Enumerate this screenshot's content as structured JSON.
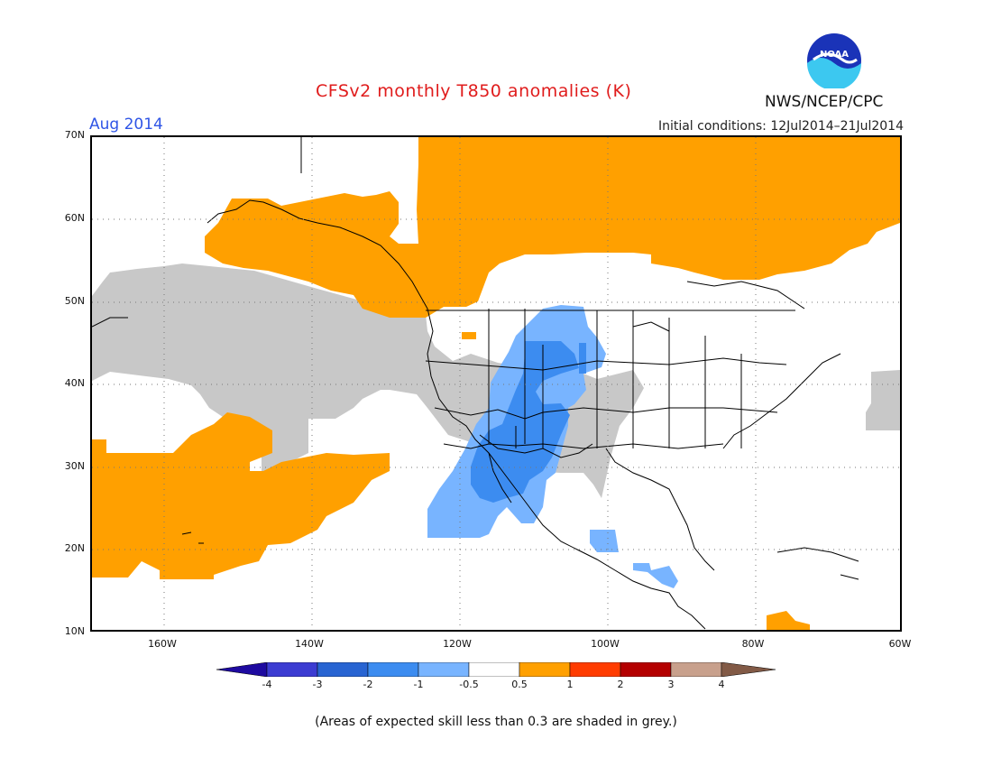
{
  "header": {
    "title": "CFSv2 monthly T850 anomalies (K)",
    "month": "Aug 2014",
    "initial_conditions": "Initial conditions: 12Jul2014–21Jul2014",
    "agency": "NWS/NCEP/CPC",
    "logo_text": "NOAA"
  },
  "map": {
    "lat_labels": [
      "70N",
      "60N",
      "50N",
      "40N",
      "30N",
      "20N",
      "10N"
    ],
    "lon_labels": [
      "160W",
      "140W",
      "120W",
      "100W",
      "80W",
      "60W"
    ],
    "colors": {
      "warm1": "#ffa000",
      "skill_grey": "#c8c8c8",
      "cool1": "#78b4ff",
      "cool2": "#3c8cf0",
      "coast": "#000000"
    }
  },
  "colorbar": {
    "labels": [
      "-4",
      "-3",
      "-2",
      "-1",
      "-0.5",
      "0.5",
      "1",
      "2",
      "3",
      "4"
    ],
    "colors": [
      "#1e0aa0",
      "#3c3cd2",
      "#2864d2",
      "#3c8cf0",
      "#78b4ff",
      "#ffffff",
      "#ffa000",
      "#ff3c00",
      "#b40000",
      "#c8a08c",
      "#825a46"
    ]
  },
  "footnote": "(Areas of expected skill less than 0.3 are shaded in grey.)"
}
